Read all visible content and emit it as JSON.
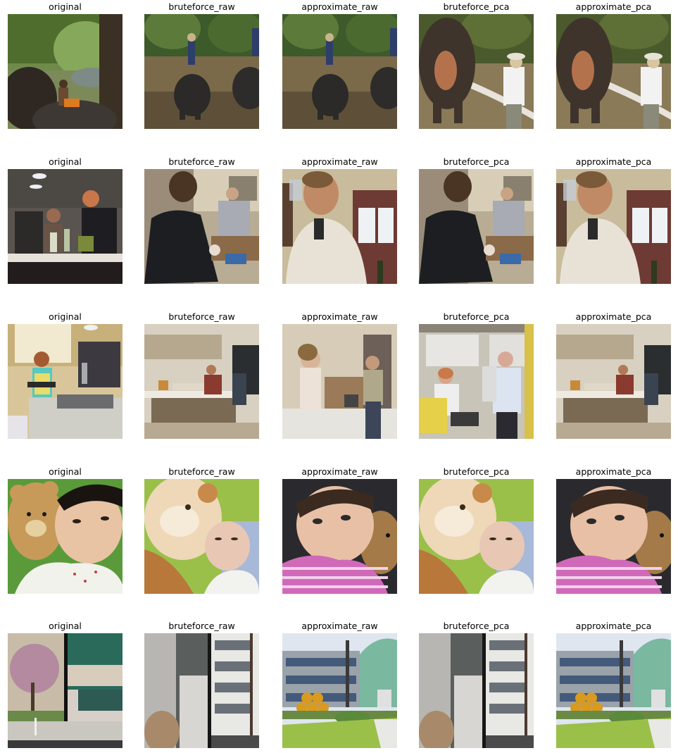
{
  "column_titles": [
    "original",
    "bruteforce_raw",
    "approximate_raw",
    "bruteforce_pca",
    "approximate_pca"
  ],
  "rows": [
    {
      "scene_ids": [
        "river-elephant-rider",
        "river-elephants-wading",
        "river-elephants-wading",
        "elephant-keeper-riverbank",
        "elephant-keeper-riverbank"
      ]
    },
    {
      "scene_ids": [
        "kitchen-two-women",
        "man-dark-shirt-kitchen",
        "man-drinking-glass",
        "man-dark-shirt-kitchen",
        "man-drinking-glass"
      ]
    },
    {
      "scene_ids": [
        "woman-apron-kitchen",
        "kitchen-people-counter",
        "woman-drinking-kitchen",
        "elderly-couple-kitchen",
        "kitchen-people-counter"
      ]
    },
    {
      "scene_ids": [
        "baby-teddy-bear",
        "teddy-bear-baby",
        "baby-pink-stripes-bear",
        "teddy-bear-baby",
        "baby-pink-stripes-bear"
      ]
    },
    {
      "scene_ids": [
        "blossom-tree-glass-building",
        "concrete-wall-buildings",
        "honeycomb-sculpture-building",
        "concrete-wall-buildings",
        "honeycomb-sculpture-building"
      ]
    }
  ],
  "colors": {
    "background": "#ffffff",
    "title_text": "#000000"
  }
}
